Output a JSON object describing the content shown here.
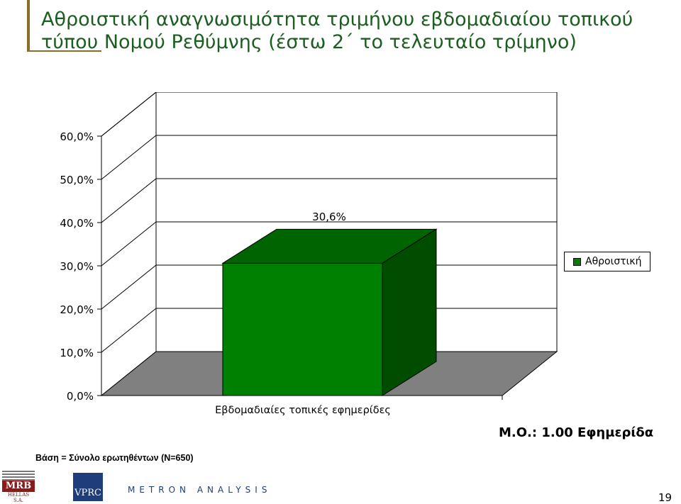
{
  "title": "Αθροιστική αναγνωσιμότητα τριμήνου εβδομαδιαίου τοπικού τύπου Νομού Ρεθύμνης (έστω 2΄ το τελευταίο τρίμηνο)",
  "chart_data": {
    "type": "bar",
    "categories": [
      "Εβδομαδιαίες τοπικές εφημερίδες"
    ],
    "series": [
      {
        "name": "Αθροιστική",
        "values": [
          30.6
        ],
        "color": "#008000"
      }
    ],
    "data_labels": [
      "30,6%"
    ],
    "yticks": [
      "0,0%",
      "10,0%",
      "20,0%",
      "30,0%",
      "40,0%",
      "50,0%",
      "60,0%"
    ],
    "ylim": [
      0,
      60
    ],
    "grid": true,
    "legend": "right",
    "three_d": true
  },
  "mean_label": "Μ.Ο.: 1.00 Εφημερίδα",
  "base_note": "Βάση = Σύνολο ερωτηθέντων (N=650)",
  "logos": {
    "mrb": "MRB",
    "mrb_sub": "HELLAS S.A.",
    "vprc": "VPRC",
    "metron": "METRON ANALYSIS"
  },
  "page_number": "19"
}
